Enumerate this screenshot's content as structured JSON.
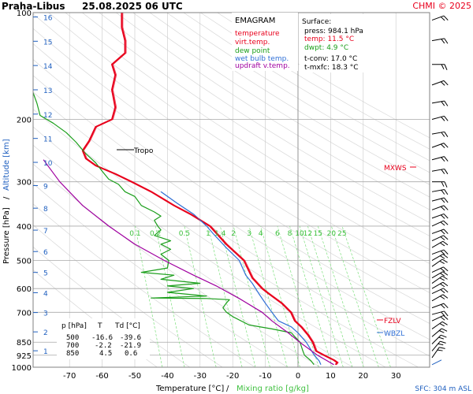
{
  "header": {
    "station": "Praha-Libus",
    "datetime": "25.08.2025 06 UTC",
    "credit": "CHMI © 2025"
  },
  "chart_data": {
    "type": "line",
    "chart_kind": "EMAGRAM",
    "xlabel": "Temperature [°C]",
    "xlabel_sep": "/",
    "xlabel2": "Mixing ratio [g/kg]",
    "ylabel": "Pressure [hPa]",
    "ylabel_sep": "/",
    "ylabel2": "Altitude [km]",
    "x_ticks": [
      -70,
      -60,
      -50,
      -40,
      -30,
      -20,
      -10,
      0,
      10,
      20,
      30
    ],
    "p_ticks": [
      100,
      200,
      300,
      400,
      500,
      600,
      700,
      850,
      925,
      1000
    ],
    "alt_ticks": [
      1,
      2,
      3,
      4,
      5,
      6,
      7,
      8,
      9,
      10,
      11,
      12,
      13,
      14,
      15,
      16
    ],
    "mixing_ratio_labels": [
      "0.1",
      "0.2",
      "0.5",
      "1",
      "1.4",
      "2",
      "3",
      "4",
      "6",
      "8",
      "10",
      "12",
      "15",
      "20",
      "25"
    ],
    "legend_title": "EMAGRAM",
    "legend": [
      {
        "label": "temperature",
        "color": "#e8001c"
      },
      {
        "label": "virt.temp.",
        "color": "#e8001c"
      },
      {
        "label": "dew point",
        "color": "#1a9e1a"
      },
      {
        "label": "wet bulb temp.",
        "color": "#2f6fd6"
      },
      {
        "label": "updraft v.temp.",
        "color": "#a000a0"
      }
    ],
    "surface": {
      "title": "Surface:",
      "press": "press: 984.1 hPa",
      "temp": "temp: 11.5 °C",
      "dwpt": "dwpt: 4.9 °C",
      "tconv": "t-conv: 17.0 °C",
      "tmxfc": "t-mxfc: 18.3 °C"
    },
    "table": {
      "headers": [
        "p [hPa]",
        "T",
        "Td [°C]"
      ],
      "rows": [
        [
          "500",
          "-16.6",
          "-39.6"
        ],
        [
          "700",
          "-2.2",
          "-21.9"
        ],
        [
          "850",
          "4.5",
          "0.6"
        ]
      ]
    },
    "markers": {
      "tropo": {
        "label": "Tropo",
        "p": 235
      },
      "mxws": {
        "label": "MXWS",
        "p": 265
      },
      "fzlv": {
        "label": "FZLV",
        "p": 712
      },
      "wbzl": {
        "label": "WBZL",
        "p": 800
      }
    },
    "sfc_label": "SFC: 304 m ASL",
    "series": [
      {
        "name": "temperature",
        "color": "#e8001c",
        "points": [
          [
            11.5,
            984
          ],
          [
            12,
            970
          ],
          [
            11,
            955
          ],
          [
            8,
            925
          ],
          [
            5.5,
            900
          ],
          [
            4.5,
            850
          ],
          [
            3,
            810
          ],
          [
            1,
            770
          ],
          [
            -1,
            740
          ],
          [
            -2.2,
            700
          ],
          [
            -5,
            660
          ],
          [
            -9,
            620
          ],
          [
            -11,
            600
          ],
          [
            -14,
            560
          ],
          [
            -16.6,
            500
          ],
          [
            -22,
            450
          ],
          [
            -27,
            400
          ],
          [
            -33,
            370
          ],
          [
            -38,
            350
          ],
          [
            -45,
            320
          ],
          [
            -51,
            300
          ],
          [
            -56,
            285
          ],
          [
            -62,
            270
          ],
          [
            -65,
            258
          ],
          [
            -66,
            245
          ],
          [
            -64,
            230
          ],
          [
            -62,
            210
          ],
          [
            -57,
            200
          ],
          [
            -56,
            185
          ],
          [
            -57,
            165
          ],
          [
            -56,
            150
          ],
          [
            -57,
            140
          ],
          [
            -53,
            130
          ],
          [
            -53,
            120
          ],
          [
            -54,
            110
          ],
          [
            -54,
            100
          ]
        ]
      },
      {
        "name": "dew point",
        "color": "#1a9e1a",
        "points": [
          [
            4.9,
            984
          ],
          [
            4,
            960
          ],
          [
            2,
            925
          ],
          [
            1.5,
            900
          ],
          [
            0.6,
            850
          ],
          [
            -1,
            820
          ],
          [
            -2,
            800
          ],
          [
            -8,
            780
          ],
          [
            -15,
            760
          ],
          [
            -20,
            720
          ],
          [
            -21.9,
            700
          ],
          [
            -23,
            680
          ],
          [
            -22,
            660
          ],
          [
            -21,
            645
          ],
          [
            -28,
            640
          ],
          [
            -45,
            638
          ],
          [
            -28,
            630
          ],
          [
            -40,
            615
          ],
          [
            -32,
            600
          ],
          [
            -40,
            590
          ],
          [
            -30,
            580
          ],
          [
            -42,
            565
          ],
          [
            -38,
            550
          ],
          [
            -48,
            540
          ],
          [
            -40,
            525
          ],
          [
            -39.6,
            500
          ],
          [
            -42,
            480
          ],
          [
            -39,
            465
          ],
          [
            -42,
            450
          ],
          [
            -39,
            440
          ],
          [
            -44,
            425
          ],
          [
            -42,
            410
          ],
          [
            -43,
            400
          ],
          [
            -44,
            385
          ],
          [
            -42,
            375
          ],
          [
            -44,
            365
          ],
          [
            -48,
            350
          ],
          [
            -50,
            330
          ],
          [
            -53,
            320
          ],
          [
            -55,
            305
          ],
          [
            -58,
            295
          ],
          [
            -60,
            280
          ],
          [
            -62,
            265
          ],
          [
            -65,
            250
          ],
          [
            -68,
            232
          ],
          [
            -71,
            218
          ],
          [
            -75,
            205
          ],
          [
            -79,
            195
          ],
          [
            -80,
            180
          ],
          [
            -82,
            160
          ],
          [
            -83,
            140
          ],
          [
            -82,
            128
          ]
        ]
      },
      {
        "name": "wet bulb temp.",
        "color": "#2f6fd6",
        "points": [
          [
            7,
            984
          ],
          [
            6.5,
            960
          ],
          [
            5,
            925
          ],
          [
            2.5,
            850
          ],
          [
            0,
            800
          ],
          [
            -2,
            770
          ],
          [
            -6,
            740
          ],
          [
            -8,
            700
          ],
          [
            -10,
            660
          ],
          [
            -12,
            620
          ],
          [
            -14,
            580
          ],
          [
            -16,
            550
          ],
          [
            -18,
            500
          ],
          [
            -22,
            460
          ],
          [
            -26,
            420
          ],
          [
            -28,
            400
          ],
          [
            -32,
            370
          ],
          [
            -37,
            345
          ],
          [
            -42,
            320
          ]
        ]
      },
      {
        "name": "updraft v.temp.",
        "color": "#a000a0",
        "points": [
          [
            11,
            984
          ],
          [
            9,
            960
          ],
          [
            6,
            925
          ],
          [
            0.5,
            850
          ],
          [
            -3,
            800
          ],
          [
            -8,
            740
          ],
          [
            -11,
            700
          ],
          [
            -18,
            640
          ],
          [
            -25,
            590
          ],
          [
            -32,
            550
          ],
          [
            -41,
            500
          ],
          [
            -50,
            450
          ],
          [
            -58,
            400
          ],
          [
            -66,
            350
          ],
          [
            -73,
            300
          ],
          [
            -78,
            260
          ]
        ]
      }
    ]
  }
}
